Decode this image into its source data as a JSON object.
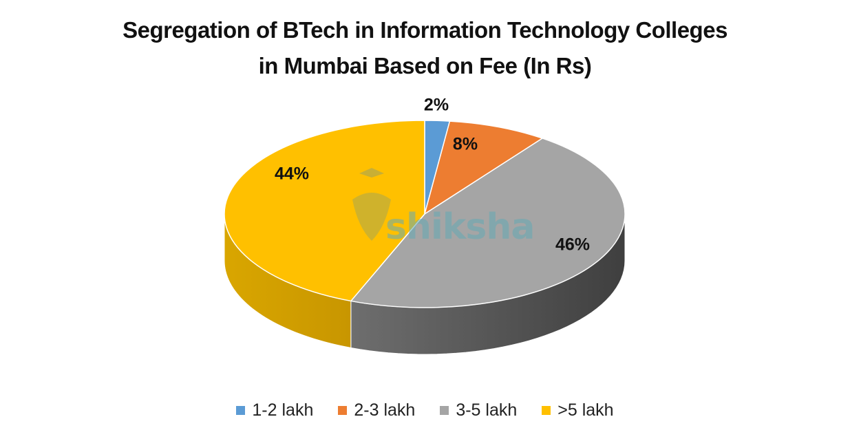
{
  "chart_data": {
    "type": "pie",
    "title": "Segregation of BTech in Information Technology Colleges in Mumbai Based on Fee (In Rs)",
    "title_lines": [
      "Segregation of BTech in Information Technology Colleges",
      "in Mumbai Based on Fee (In Rs)"
    ],
    "categories": [
      "1-2 lakh",
      "2-3 lakh",
      "3-5 lakh",
      ">5 lakh"
    ],
    "values": [
      2,
      8,
      46,
      44
    ],
    "unit": "%",
    "data_labels": [
      "2%",
      "8%",
      "46%",
      "44%"
    ],
    "colors": [
      "#5B9BD5",
      "#ED7D31",
      "#A5A5A5",
      "#FFC000"
    ],
    "legend_position": "bottom",
    "style": "3d-pie"
  },
  "legend": [
    {
      "label": "1-2 lakh",
      "color": "#5B9BD5"
    },
    {
      "label": "2-3 lakh",
      "color": "#ED7D31"
    },
    {
      "label": "3-5 lakh",
      "color": "#A5A5A5"
    },
    {
      "label": ">5 lakh",
      "color": "#FFC000"
    }
  ],
  "watermark": "shiksha"
}
